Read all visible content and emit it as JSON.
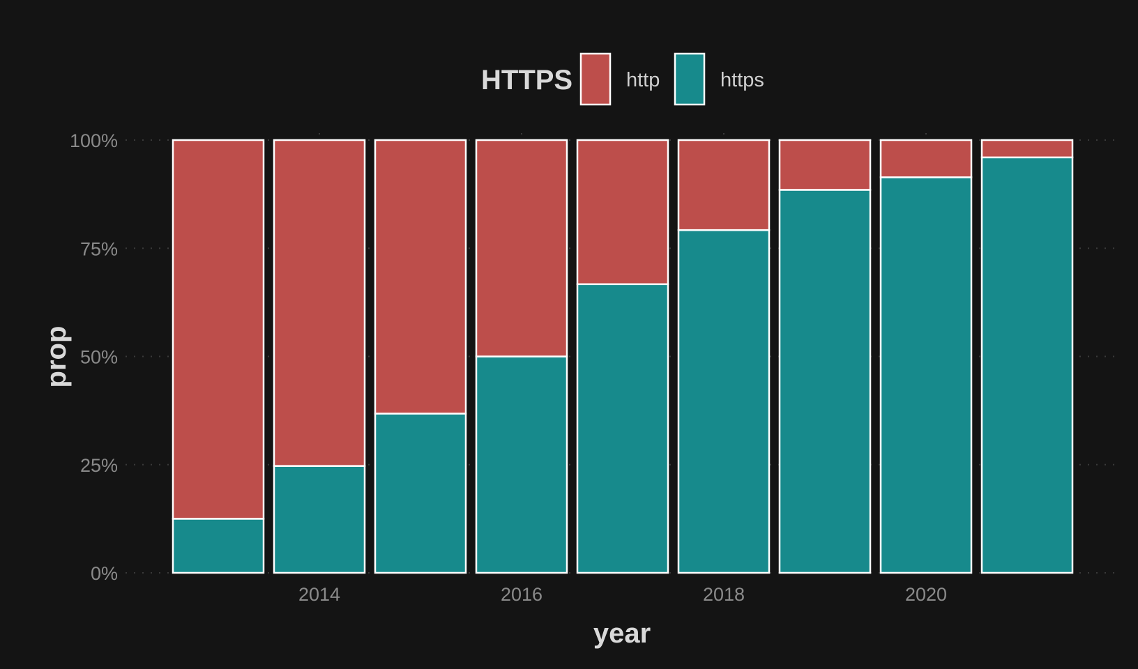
{
  "chart_data": {
    "type": "bar",
    "stacked": "fill",
    "x": [
      2013,
      2014,
      2015,
      2016,
      2017,
      2018,
      2019,
      2020,
      2021
    ],
    "x_ticks": [
      "2014",
      "2016",
      "2018",
      "2020"
    ],
    "y_ticks": [
      "0%",
      "25%",
      "50%",
      "75%",
      "100%"
    ],
    "ylim": [
      0,
      1
    ],
    "xlabel": "year",
    "ylabel": "prop",
    "legend_title": "HTTPS",
    "legend_position": "top",
    "grid": "horizontal-dotted",
    "series": [
      {
        "name": "https",
        "color": "#178a8c",
        "values": [
          0.125,
          0.247,
          0.368,
          0.5,
          0.667,
          0.792,
          0.885,
          0.914,
          0.96
        ]
      },
      {
        "name": "http",
        "color": "#bd4e4b",
        "values": [
          0.875,
          0.753,
          0.632,
          0.5,
          0.333,
          0.208,
          0.115,
          0.086,
          0.04
        ]
      }
    ]
  },
  "colors": {
    "background": "#141414",
    "bar_outline": "#ffffff"
  }
}
